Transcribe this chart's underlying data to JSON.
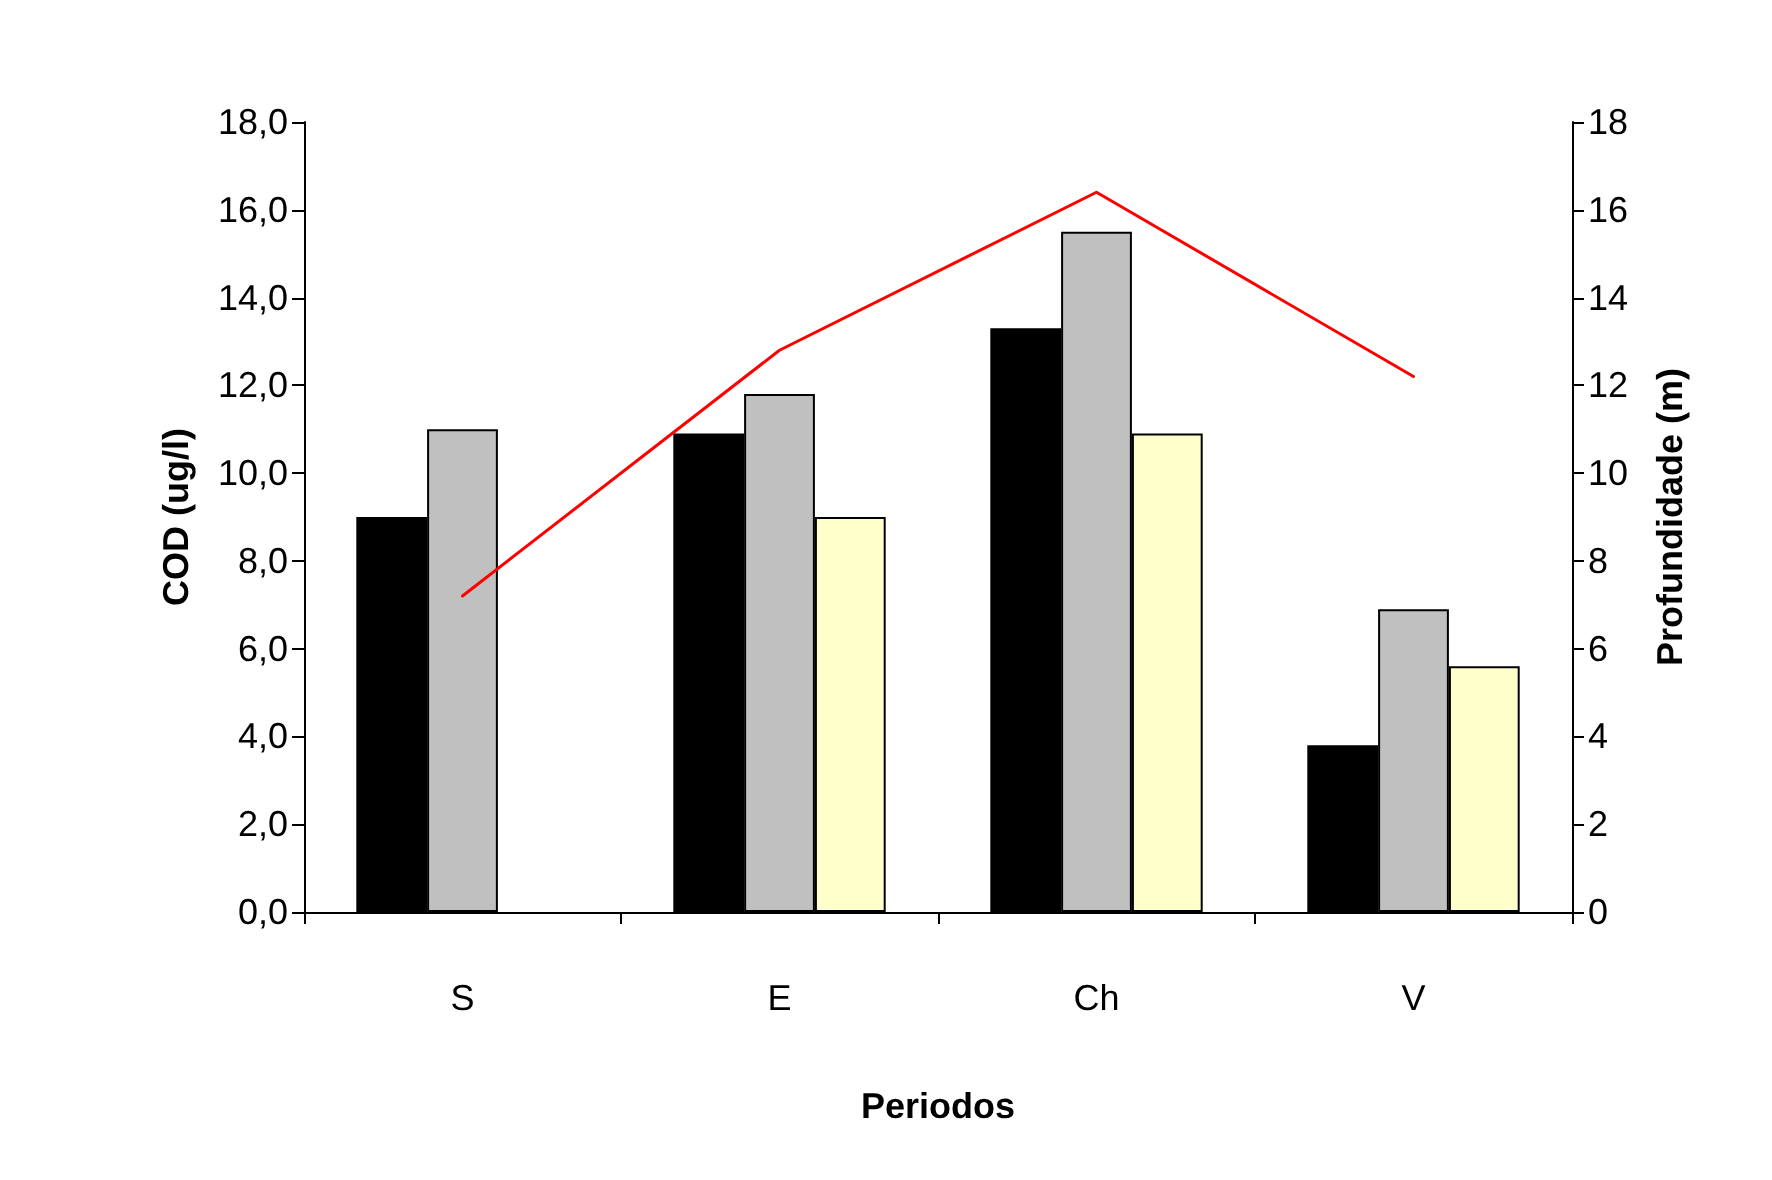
{
  "chart_data": {
    "type": "bar",
    "xlabel": "Periodos",
    "ylabel": "COD (ug/l)",
    "y2label": "Profundidade (m)",
    "categories": [
      "S",
      "E",
      "Ch",
      "V"
    ],
    "series": [
      {
        "color": "#000000",
        "values": [
          9.0,
          10.9,
          13.3,
          3.8
        ]
      },
      {
        "color": "#c0c0c0",
        "values": [
          11.0,
          11.8,
          15.5,
          6.9
        ]
      },
      {
        "color": "#ffffcc",
        "values": [
          null,
          9.0,
          10.9,
          5.6
        ]
      },
      {
        "type": "line",
        "axis": "y2",
        "color": "#ff0000",
        "values": [
          7.2,
          12.8,
          16.4,
          12.2
        ]
      }
    ],
    "ylim": [
      0,
      18
    ],
    "yticks": [
      {
        "value": 0,
        "label": "0,0"
      },
      {
        "value": 2,
        "label": "2,0"
      },
      {
        "value": 4,
        "label": "4,0"
      },
      {
        "value": 6,
        "label": "6,0"
      },
      {
        "value": 8,
        "label": "8,0"
      },
      {
        "value": 10,
        "label": "10,0"
      },
      {
        "value": 12,
        "label": "12,0"
      },
      {
        "value": 14,
        "label": "14,0"
      },
      {
        "value": 16,
        "label": "16,0"
      },
      {
        "value": 18,
        "label": "18,0"
      }
    ],
    "y2lim": [
      0,
      18
    ],
    "y2ticks": [
      0,
      2,
      4,
      6,
      8,
      10,
      12,
      14,
      16,
      18
    ],
    "grid": false,
    "marker": "none",
    "line_style": "solid"
  }
}
